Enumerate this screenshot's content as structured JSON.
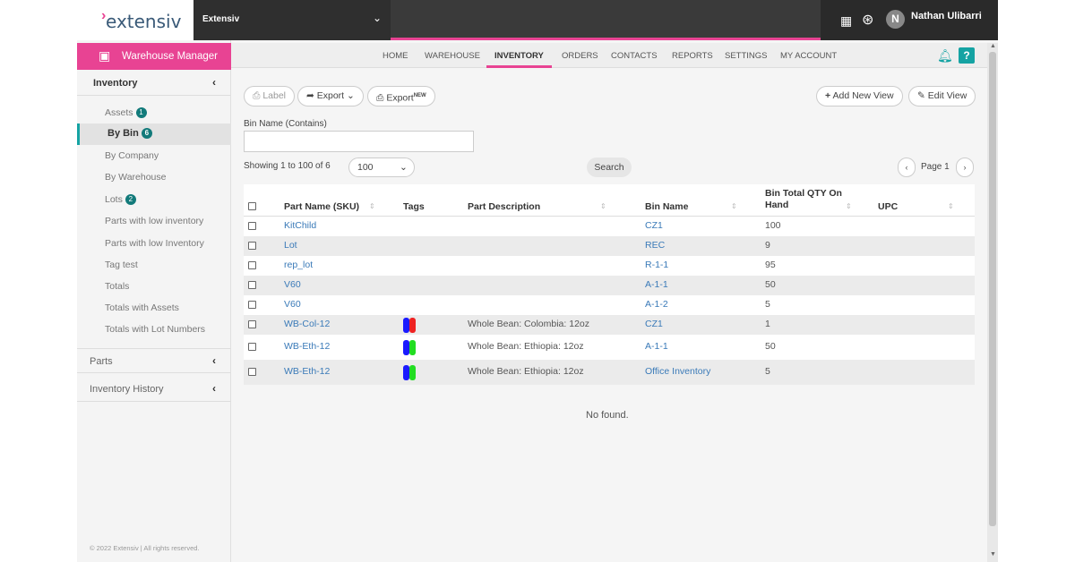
{
  "header": {
    "logo_text": "extensiv",
    "company": "Extensiv",
    "user_initial": "N",
    "user_name": "Nathan Ulibarri"
  },
  "sidebar": {
    "app_title": "Warehouse Manager",
    "inventory_section": "Inventory",
    "items": [
      {
        "label": "Assets",
        "badge": "1"
      },
      {
        "label": "By Bin",
        "badge": "6"
      },
      {
        "label": "By Company"
      },
      {
        "label": "By Warehouse"
      },
      {
        "label": "Lots",
        "badge": "2"
      },
      {
        "label": "Parts with low inventory"
      },
      {
        "label": "Parts with low Inventory"
      },
      {
        "label": "Tag test"
      },
      {
        "label": "Totals"
      },
      {
        "label": "Totals with Assets"
      },
      {
        "label": "Totals with Lot Numbers"
      }
    ],
    "parts_section": "Parts",
    "history_section": "Inventory History",
    "copyright": "© 2022 Extensiv | All rights reserved."
  },
  "nav": {
    "items": [
      "HOME",
      "WAREHOUSE",
      "INVENTORY",
      "ORDERS",
      "CONTACTS",
      "REPORTS",
      "SETTINGS",
      "MY ACCOUNT"
    ],
    "active": "INVENTORY",
    "help": "?"
  },
  "toolbar": {
    "label_btn": "Label",
    "export_btn": "Export",
    "export_new_btn": "Export",
    "export_new_sup": "NEW",
    "add_view_btn": "Add New View",
    "edit_view_btn": "Edit View"
  },
  "filter": {
    "bin_name_label": "Bin Name (Contains)",
    "bin_name_value": "",
    "showing": "Showing 1 to 100 of 6",
    "page_size": "100",
    "search_btn": "Search",
    "page_label": "Page 1"
  },
  "table": {
    "headers": [
      "Part Name (SKU)",
      "Tags",
      "Part Description",
      "Bin Name",
      "Bin Total QTY On Hand",
      "UPC"
    ],
    "rows": [
      {
        "sku": "KitChild",
        "tags": [],
        "desc": "",
        "bin": "CZ1",
        "qty": "100",
        "upc": ""
      },
      {
        "sku": "Lot",
        "tags": [],
        "desc": "",
        "bin": "REC",
        "qty": "9",
        "upc": ""
      },
      {
        "sku": "rep_lot",
        "tags": [],
        "desc": "",
        "bin": "R-1-1",
        "qty": "95",
        "upc": ""
      },
      {
        "sku": "V60",
        "tags": [],
        "desc": "",
        "bin": "A-1-1",
        "qty": "50",
        "upc": ""
      },
      {
        "sku": "V60",
        "tags": [],
        "desc": "",
        "bin": "A-1-2",
        "qty": "5",
        "upc": ""
      },
      {
        "sku": "WB-Col-12",
        "tags": [
          "#1a1aff",
          "#ee2222"
        ],
        "desc": "Whole Bean: Colombia: 12oz",
        "bin": "CZ1",
        "qty": "1",
        "upc": ""
      },
      {
        "sku": "WB-Eth-12",
        "tags": [
          "#1a1aff",
          "#22dd22"
        ],
        "desc": "Whole Bean: Ethiopia: 12oz",
        "bin": "A-1-1",
        "qty": "50",
        "upc": ""
      },
      {
        "sku": "WB-Eth-12",
        "tags": [
          "#1a1aff",
          "#22dd22"
        ],
        "desc": "Whole Bean: Ethiopia: 12oz",
        "bin": "Office Inventory",
        "qty": "5",
        "upc": ""
      }
    ],
    "empty_text": "No found."
  },
  "colors": {
    "brand_pink": "#e84393",
    "teal": "#15a3a3",
    "link_blue": "#3a7ab8"
  }
}
